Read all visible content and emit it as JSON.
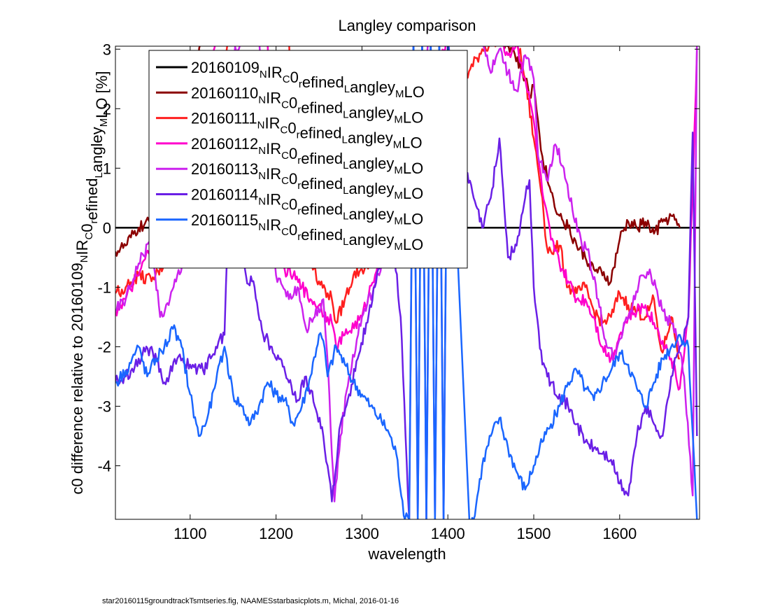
{
  "chart_data": {
    "type": "line",
    "title": "Langley comparison",
    "xlabel": "wavelength",
    "ylabel": {
      "main": "c0 difference relative to 20160109",
      "sub1": "N",
      "mid1": "IR",
      "sub2": "C",
      "mid2": "0",
      "sub3": "r",
      "mid3": "efined",
      "sub4": "L",
      "mid4": "angley",
      "sub5": "M",
      "end": "LO [%]"
    },
    "xlim": [
      1013,
      1693
    ],
    "ylim": [
      -4.9,
      3.05
    ],
    "xticks": [
      1100,
      1200,
      1300,
      1400,
      1500,
      1600
    ],
    "yticks": [
      -4,
      -3,
      -2,
      -1,
      0,
      1,
      2,
      3
    ],
    "grid": false,
    "legend_position": "top-left",
    "legend_suffix": {
      "sub1": "N",
      "mid1": "IR",
      "sub2": "C",
      "mid2": "0",
      "sub3": "r",
      "mid3": "efined",
      "sub4": "L",
      "mid4": "angley",
      "sub5": "M",
      "end": "LO"
    },
    "series": [
      {
        "name": "20160109",
        "color": "#000000",
        "x": [
          1013,
          1693
        ],
        "y": [
          0,
          0
        ]
      },
      {
        "name": "20160110",
        "color": "#8b0000",
        "x": [
          1013,
          1025,
          1040,
          1055,
          1070,
          1085,
          1100,
          1115,
          1130,
          1145,
          1160,
          1175,
          1190,
          1205,
          1220,
          1235,
          1250,
          1260,
          1270,
          1280,
          1290,
          1300,
          1320,
          1340,
          1360,
          1380,
          1400,
          1420,
          1440,
          1460,
          1475,
          1490,
          1495,
          1500,
          1505,
          1510,
          1520,
          1530,
          1540,
          1550,
          1560,
          1570,
          1580,
          1590,
          1600,
          1610,
          1620,
          1630,
          1640,
          1650,
          1660,
          1670
        ],
        "y": [
          -0.4,
          -0.3,
          0.0,
          0.1,
          0.5,
          1.2,
          2.3,
          3.2,
          3.2,
          3.2,
          3.2,
          3.2,
          3.2,
          3.2,
          3.2,
          3.2,
          3.2,
          3.2,
          3.2,
          3.2,
          3.2,
          3.2,
          3.2,
          3.2,
          3.2,
          3.2,
          3.2,
          3.2,
          3.2,
          3.2,
          3.0,
          2.5,
          2.2,
          2.4,
          1.8,
          1.2,
          0.6,
          0.2,
          0.0,
          -0.3,
          -0.5,
          -0.7,
          -0.8,
          -0.9,
          -0.2,
          0.1,
          0.0,
          0.1,
          -0.1,
          0.1,
          0.2,
          0.0
        ]
      },
      {
        "name": "20160111",
        "color": "#ff1f1f",
        "x": [
          1013,
          1025,
          1040,
          1055,
          1070,
          1085,
          1100,
          1115,
          1130,
          1145,
          1160,
          1175,
          1190,
          1205,
          1215,
          1225,
          1240,
          1250,
          1260,
          1265,
          1270,
          1280,
          1290,
          1300,
          1310,
          1320,
          1340,
          1360,
          1380,
          1400,
          1420,
          1440,
          1460,
          1480,
          1490,
          1500,
          1510,
          1515,
          1520,
          1530,
          1540,
          1550,
          1560,
          1570,
          1580,
          1590,
          1600,
          1610,
          1620,
          1630,
          1640,
          1645,
          1650,
          1660,
          1670
        ],
        "y": [
          -1.1,
          -1.0,
          -0.8,
          -0.9,
          -0.6,
          -0.4,
          0.2,
          1.0,
          2.2,
          3.2,
          3.2,
          3.2,
          3.2,
          3.2,
          3.2,
          -0.4,
          -0.5,
          -0.9,
          -1.1,
          -1.2,
          -1.6,
          -1.2,
          -0.8,
          -0.7,
          -0.6,
          0.0,
          0.5,
          1.0,
          1.5,
          2.0,
          2.5,
          3.0,
          3.2,
          3.2,
          2.5,
          1.5,
          0.5,
          -0.3,
          -0.4,
          -0.3,
          -1.0,
          -1.1,
          -1.0,
          -1.4,
          -1.6,
          -1.5,
          -1.1,
          -1.3,
          -1.4,
          -1.5,
          -1.2,
          -1.8,
          -2.1,
          -1.5,
          -2.2
        ]
      },
      {
        "name": "20160112",
        "color": "#ff00cc",
        "x": [
          1013,
          1025,
          1040,
          1055,
          1070,
          1085,
          1100,
          1115,
          1130,
          1150,
          1170,
          1190,
          1200,
          1210,
          1220,
          1230,
          1240,
          1250,
          1260,
          1265,
          1270,
          1280,
          1300,
          1320,
          1340,
          1360,
          1380,
          1400,
          1420,
          1440,
          1460,
          1470,
          1480,
          1490,
          1500,
          1505,
          1510,
          1520,
          1530,
          1540,
          1550,
          1560,
          1570,
          1580,
          1590,
          1600,
          1610,
          1620,
          1630,
          1640,
          1650,
          1660,
          1670,
          1680,
          1690
        ],
        "y": [
          -1.4,
          -1.2,
          -0.8,
          -0.3,
          0.0,
          0.3,
          1.0,
          2.0,
          3.2,
          3.2,
          3.2,
          3.2,
          -0.5,
          -0.7,
          -0.8,
          -1.0,
          -1.2,
          -1.3,
          -1.5,
          -1.6,
          -2.0,
          -1.8,
          -1.5,
          -0.5,
          0.5,
          1.5,
          2.5,
          3.2,
          3.2,
          3.2,
          3.2,
          2.9,
          3.1,
          2.5,
          1.8,
          1.2,
          0.6,
          -0.2,
          -0.6,
          -0.9,
          -1.2,
          -1.2,
          -1.5,
          -2.0,
          -2.2,
          -1.8,
          -1.5,
          -1.4,
          -1.3,
          -1.6,
          -1.9,
          -2.2,
          -2.7,
          -1.5,
          3.0
        ]
      },
      {
        "name": "20160113",
        "color": "#cc22ee",
        "x": [
          1013,
          1025,
          1040,
          1055,
          1065,
          1075,
          1085,
          1095,
          1110,
          1125,
          1140,
          1160,
          1180,
          1200,
          1215,
          1225,
          1235,
          1245,
          1255,
          1262,
          1268,
          1275,
          1285,
          1300,
          1320,
          1340,
          1360,
          1380,
          1400,
          1420,
          1440,
          1450,
          1460,
          1470,
          1480,
          1490,
          1500,
          1505,
          1515,
          1525,
          1535,
          1545,
          1555,
          1565,
          1575,
          1585,
          1595,
          1605,
          1615,
          1625,
          1635,
          1645,
          1655,
          1665,
          1675,
          1685,
          1690
        ],
        "y": [
          -1.4,
          -1.2,
          -0.6,
          -0.2,
          -1.5,
          -1.3,
          -0.8,
          -0.5,
          0.2,
          1.5,
          2.5,
          3.2,
          3.2,
          -0.8,
          -1.2,
          -1.0,
          -1.7,
          -1.5,
          -1.2,
          -2.8,
          -4.6,
          -3.5,
          -2.5,
          -1.5,
          -0.8,
          0.5,
          2.0,
          3.2,
          3.2,
          3.2,
          3.2,
          2.6,
          3.0,
          2.6,
          2.3,
          2.9,
          2.5,
          1.2,
          0.8,
          1.4,
          1.0,
          0.3,
          -0.2,
          -0.5,
          -1.2,
          -2.0,
          -2.2,
          -1.6,
          -1.3,
          -0.8,
          -0.7,
          -1.2,
          -1.5,
          -1.7,
          -2.5,
          -4.5,
          3.2
        ]
      },
      {
        "name": "20160114",
        "color": "#6a1fe6",
        "x": [
          1013,
          1025,
          1040,
          1055,
          1070,
          1085,
          1100,
          1115,
          1130,
          1140,
          1145,
          1155,
          1165,
          1175,
          1185,
          1195,
          1205,
          1215,
          1225,
          1235,
          1245,
          1255,
          1260,
          1265,
          1275,
          1285,
          1295,
          1305,
          1315,
          1325,
          1335,
          1345,
          1355,
          1360,
          1365,
          1370,
          1375,
          1380,
          1385,
          1390,
          1395,
          1400,
          1410,
          1420,
          1430,
          1440,
          1450,
          1460,
          1470,
          1480,
          1490,
          1495,
          1500,
          1510,
          1520,
          1530,
          1540,
          1550,
          1560,
          1570,
          1580,
          1590,
          1600,
          1610,
          1620,
          1630,
          1640,
          1650,
          1660,
          1670,
          1680,
          1685,
          1690
        ],
        "y": [
          -2.6,
          -2.5,
          -2.2,
          -2.0,
          -2.6,
          -2.2,
          -2.3,
          -2.4,
          -2.0,
          -1.8,
          0.5,
          0.0,
          -0.8,
          -1.0,
          -1.8,
          -2.0,
          -2.2,
          -2.6,
          -2.9,
          -2.5,
          -3.0,
          -3.5,
          -4.0,
          -4.6,
          -3.3,
          -2.8,
          -2.2,
          -1.6,
          -1.0,
          -0.5,
          0.0,
          -1.5,
          -4.9,
          3.2,
          -4.9,
          3.2,
          -4.9,
          3.2,
          -4.9,
          3.2,
          -4.9,
          3.2,
          2.0,
          1.0,
          0.5,
          0.0,
          0.5,
          1.5,
          -0.5,
          -0.3,
          0.5,
          0.8,
          -1.0,
          -2.3,
          -2.6,
          -2.8,
          -3.0,
          -3.3,
          -3.6,
          -3.7,
          -3.8,
          -3.9,
          -4.3,
          -4.5,
          -3.5,
          -3.0,
          -3.3,
          -3.5,
          -2.5,
          -2.0,
          -1.5,
          1.6,
          -3.5
        ]
      },
      {
        "name": "20160115",
        "color": "#1a66ff",
        "x": [
          1013,
          1025,
          1040,
          1050,
          1060,
          1070,
          1080,
          1090,
          1100,
          1110,
          1120,
          1130,
          1140,
          1150,
          1160,
          1170,
          1180,
          1190,
          1200,
          1210,
          1220,
          1230,
          1240,
          1250,
          1255,
          1260,
          1270,
          1280,
          1290,
          1300,
          1310,
          1320,
          1330,
          1340,
          1350,
          1355,
          1360,
          1365,
          1370,
          1375,
          1380,
          1385,
          1390,
          1395,
          1400,
          1425,
          1430,
          1440,
          1450,
          1460,
          1470,
          1480,
          1490,
          1500,
          1510,
          1520,
          1530,
          1540,
          1550,
          1560,
          1570,
          1580,
          1590,
          1600,
          1610,
          1620,
          1630,
          1640,
          1650,
          1660,
          1670,
          1680,
          1690
        ],
        "y": [
          -2.6,
          -2.4,
          -2.0,
          -2.5,
          -2.2,
          -2.0,
          -1.7,
          -2.0,
          -2.8,
          -3.5,
          -3.2,
          -2.6,
          -2.0,
          -2.8,
          -3.0,
          -3.3,
          -3.0,
          -2.6,
          -2.8,
          -2.9,
          -3.3,
          -3.0,
          -2.5,
          -1.8,
          -1.9,
          -2.5,
          -2.0,
          -2.3,
          -2.6,
          -2.8,
          -3.0,
          -3.2,
          -3.4,
          -3.8,
          -4.9,
          -4.9,
          3.2,
          -4.9,
          3.2,
          -4.9,
          3.2,
          -4.9,
          3.2,
          -4.9,
          3.2,
          -4.9,
          -4.9,
          -4.0,
          -3.5,
          -3.2,
          -3.7,
          -4.1,
          -4.4,
          -4.0,
          -3.6,
          -3.3,
          -3.0,
          -2.6,
          -2.4,
          -2.7,
          -2.9,
          -2.6,
          -2.4,
          -2.1,
          -2.3,
          -2.7,
          -3.0,
          -2.6,
          -2.2,
          -2.0,
          -1.8,
          -2.0,
          -4.9
        ]
      }
    ]
  },
  "footer": "star20160115groundtrackTsmtseries.fig, NAAMESstarbasicplots.m, Michal, 2016-01-16"
}
